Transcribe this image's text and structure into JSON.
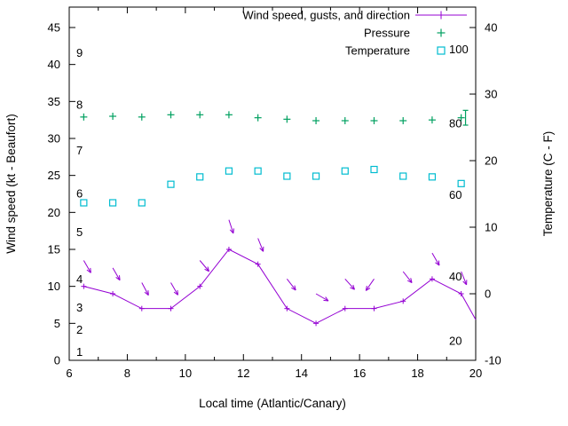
{
  "chart_data": {
    "type": "line",
    "title": "",
    "xlabel": "Local time (Atlantic/Canary)",
    "ylabel_left": "Wind speed (kt - Beaufort)",
    "ylabel_right": "Temperature (C - F)",
    "xlim": [
      6,
      20
    ],
    "ylim_left": [
      0,
      47.76
    ],
    "ylim_right": [
      -10,
      43.07
    ],
    "x_ticks": [
      6,
      8,
      10,
      12,
      14,
      16,
      18,
      20
    ],
    "x_minor_ticks": [
      7,
      9,
      11,
      13,
      15,
      17,
      19
    ],
    "left_ticks": [
      0,
      5,
      10,
      15,
      20,
      25,
      30,
      35,
      40,
      45
    ],
    "right_ticks": [
      -10,
      0,
      10,
      20,
      30,
      40
    ],
    "grid": false,
    "legend_position": "top-right-inside",
    "legend": [
      {
        "label": "Wind speed, gusts, and direction",
        "series": "wind"
      },
      {
        "label": "Pressure",
        "series": "pressure"
      },
      {
        "label": "Temperature",
        "series": "temperature"
      }
    ],
    "beaufort_labels": [
      {
        "label": "1",
        "v": 1.1
      },
      {
        "label": "2",
        "v": 4.1
      },
      {
        "label": "3",
        "v": 7.1
      },
      {
        "label": "4",
        "v": 10.9
      },
      {
        "label": "5",
        "v": 17.3
      },
      {
        "label": "6",
        "v": 22.5
      },
      {
        "label": "7",
        "v": 28.3
      },
      {
        "label": "8",
        "v": 34.5
      },
      {
        "label": "9",
        "v": 41.5
      }
    ],
    "fahrenheit_labels": [
      {
        "label": "20",
        "v": 2.6
      },
      {
        "label": "40",
        "v": 11.3
      },
      {
        "label": "60",
        "v": 22.3
      },
      {
        "label": "80",
        "v": 32.0
      },
      {
        "label": "100",
        "v": 42.0
      }
    ],
    "colors": {
      "wind": "#9400d3",
      "pressure": "#00a060",
      "temperature": "#00bcd0",
      "axis": "#000000"
    },
    "series": {
      "wind": {
        "x": [
          6.5,
          7.5,
          8.5,
          9.5,
          10.5,
          11.5,
          12.5,
          13.5,
          14.5,
          15.5,
          16.5,
          17.5,
          18.5,
          19.5
        ],
        "speed_kt": [
          10,
          9,
          7,
          7,
          10,
          15,
          13,
          7,
          5,
          7,
          7,
          8,
          11,
          9
        ],
        "gust_kt": [
          13.5,
          12.5,
          10.5,
          10.5,
          13.5,
          19,
          16.5,
          11,
          9,
          11,
          11,
          12,
          14.5,
          12
        ],
        "dir_deg": [
          150,
          150,
          152,
          150,
          140,
          162,
          158,
          142,
          120,
          138,
          215,
          142,
          150,
          158
        ],
        "line_end": {
          "x": 20,
          "y": 5.5
        }
      },
      "pressure": {
        "x": [
          6.5,
          7.5,
          8.5,
          9.5,
          10.5,
          11.5,
          12.5,
          13.5,
          14.5,
          15.5,
          16.5,
          17.5,
          18.5,
          19.5
        ],
        "plotted_values_left_axis": [
          32.9,
          33.0,
          32.9,
          33.2,
          33.2,
          33.2,
          32.8,
          32.6,
          32.4,
          32.4,
          32.4,
          32.4,
          32.5,
          32.8
        ],
        "errorbar": {
          "x": 19.65,
          "v": 32.8,
          "lo": 31.8,
          "hi": 33.8
        }
      },
      "temperature": {
        "x": [
          6.5,
          7.5,
          8.5,
          9.5,
          10.5,
          11.5,
          12.5,
          13.5,
          14.5,
          15.5,
          16.5,
          17.5,
          18.5,
          19.5
        ],
        "plotted_values_left_axis": [
          21.3,
          21.3,
          21.3,
          23.8,
          24.8,
          25.6,
          25.6,
          24.9,
          24.9,
          25.6,
          25.8,
          24.9,
          24.8,
          23.9
        ]
      }
    }
  }
}
